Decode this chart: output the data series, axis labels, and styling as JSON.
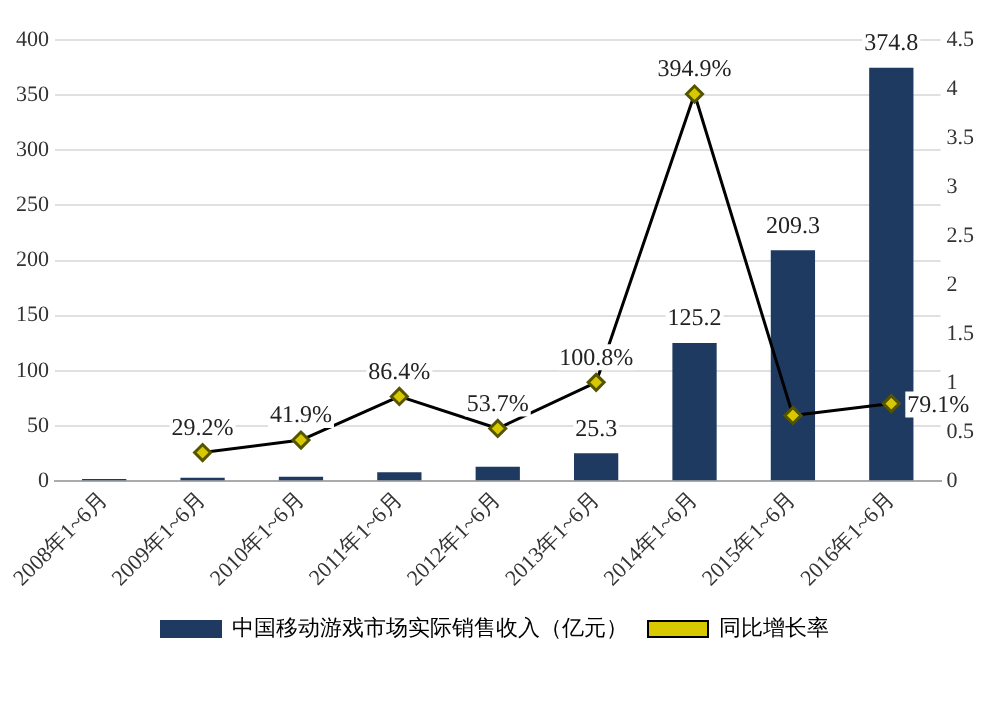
{
  "chart_data": {
    "type": "bar",
    "categories": [
      "2008年1~6月",
      "2009年1~6月",
      "2010年1~6月",
      "2011年1~6月",
      "2012年1~6月",
      "2013年1~6月",
      "2014年1~6月",
      "2015年1~6月",
      "2016年1~6月"
    ],
    "series": [
      {
        "name": "中国移动游戏市场实际销售收入（亿元）",
        "color": "#1f3a60",
        "values": [
          2,
          3,
          4,
          8,
          13,
          25.3,
          125.2,
          209.3,
          374.8
        ],
        "value_labels": [
          null,
          null,
          null,
          null,
          null,
          "25.3",
          "125.2",
          "209.3",
          "374.8"
        ]
      },
      {
        "name": "同比增长率",
        "type": "line",
        "axis": "y2",
        "color": "#000000",
        "values": [
          null,
          0.292,
          0.419,
          0.864,
          0.537,
          1.008,
          3.949,
          0.67,
          0.791
        ],
        "value_labels": [
          null,
          "29.2%",
          "41.9%",
          "86.4%",
          "53.7%",
          "100.8%",
          "394.9%",
          null,
          "79.1%"
        ]
      }
    ],
    "ylim": [
      0,
      400
    ],
    "yticks": [
      0,
      50,
      100,
      150,
      200,
      250,
      300,
      350,
      400
    ],
    "y2lim": [
      0,
      4.5
    ],
    "y2ticks": [
      0,
      {
        "value": 0.5,
        "label": "0.5"
      },
      1,
      1.5,
      2,
      2.5,
      3,
      3.5,
      4,
      4.5
    ],
    "grid": "y",
    "legend": "bottom",
    "marker": "diamond",
    "line_style": "solid"
  }
}
